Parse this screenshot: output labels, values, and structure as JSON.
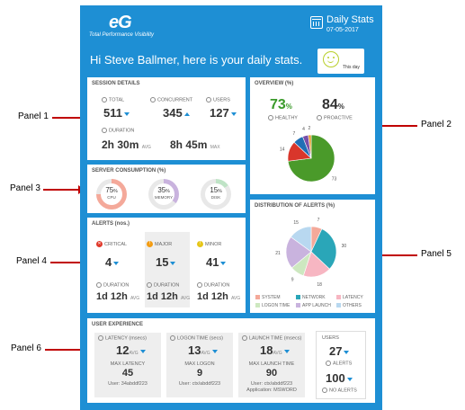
{
  "annotations": [
    "Panel 1",
    "Panel 2",
    "Panel 3",
    "Panel 4",
    "Panel 5",
    "Panel 6"
  ],
  "header": {
    "logo_text": "eG",
    "logo_tagline": "Total Performance Visibility",
    "title": "Daily Stats",
    "date": "07-05-2017",
    "greeting": "Hi Steve Ballmer, here is your daily stats.",
    "mood_label": "This day"
  },
  "session": {
    "title": "SESSION DETAILS",
    "total_label": "TOTAL",
    "total": "511",
    "concurrent_label": "CONCURRENT",
    "concurrent": "345",
    "users_label": "USERS",
    "users": "127",
    "duration_label": "DURATION",
    "avg_h": "2h",
    "avg_m": "30m",
    "avg_tag": "AVG",
    "max_h": "8h",
    "max_m": "45m",
    "max_tag": "MAX"
  },
  "overview": {
    "title": "OVERVIEW (%)",
    "healthy_value": "73",
    "healthy_unit": "%",
    "healthy_label": "HEALTHY",
    "proactive_value": "84",
    "proactive_unit": "%",
    "proactive_label": "PROACTIVE"
  },
  "server": {
    "title": "SERVER CONSUMPTION (%)",
    "items": [
      {
        "value": "75",
        "label": "CPU",
        "fraction": 0.75,
        "color": "#f4a99a"
      },
      {
        "value": "35",
        "label": "MEMORY",
        "fraction": 0.35,
        "color": "#c9b3de"
      },
      {
        "value": "15",
        "label": "DISK",
        "fraction": 0.15,
        "color": "#bfe3c6"
      }
    ],
    "unit": "%"
  },
  "alerts": {
    "title": "ALERTS (nos.)",
    "cols": [
      {
        "label": "CRITICAL",
        "value": "4",
        "dur_label": "DURATION",
        "d": "1d",
        "h": "12h",
        "tag": "AVG",
        "color": "#e0392b",
        "glyph": "✕"
      },
      {
        "label": "MAJOR",
        "value": "15",
        "dur_label": "DURATION",
        "d": "1d",
        "h": "12h",
        "tag": "AVG",
        "color": "#f39c12",
        "glyph": "!"
      },
      {
        "label": "MINOR",
        "value": "41",
        "dur_label": "DURATION",
        "d": "1d",
        "h": "12h",
        "tag": "AVG",
        "color": "#e6c619",
        "glyph": "!"
      }
    ]
  },
  "ux": {
    "title": "USER EXPERIENCE",
    "cols": [
      {
        "label": "LATENCY",
        "unit": "(msecs)",
        "value": "12",
        "tag": "AVG",
        "max_label": "MAX LATENCY",
        "max": "45",
        "user": "User: 34abddf223",
        "extra": ""
      },
      {
        "label": "LOGON TIME",
        "unit": "(secs)",
        "value": "13",
        "tag": "AVG",
        "max_label": "MAX LOGON",
        "max": "9",
        "user": "User: ctx/abddf223",
        "extra": ""
      },
      {
        "label": "LAUNCH TIME",
        "unit": "(msecs)",
        "value": "18",
        "tag": "AVG",
        "max_label": "MAX LAUNCH TIME",
        "max": "90",
        "user": "User: ctx/abddf223",
        "extra": "Application: MSWORD"
      }
    ],
    "users_label": "USERS",
    "users_value": "27",
    "alerts_label": "ALERTS",
    "no_alert_value": "100",
    "no_alerts_label": "NO ALERTS"
  },
  "distribution": {
    "title": "DISTRIBUTION OF ALERTS (%)",
    "legend": [
      {
        "label": "SYSTEM",
        "color": "#f4a99a"
      },
      {
        "label": "NETWORK",
        "color": "#2aa6b8"
      },
      {
        "label": "LATENCY",
        "color": "#f7b6c2"
      },
      {
        "label": "LOGON TIME",
        "color": "#cde8c0"
      },
      {
        "label": "APP LAUNCH",
        "color": "#c9b3de"
      },
      {
        "label": "OTHERS",
        "color": "#b8d8f0"
      }
    ]
  },
  "chart_data": [
    {
      "type": "pie",
      "categories": [
        "",
        "",
        "",
        "",
        ""
      ],
      "values": [
        73,
        14,
        7,
        4,
        2
      ],
      "colors": [
        "#4a9a2a",
        "#d9362b",
        "#1f6fb5",
        "#7a4fa8",
        "#e69a2b"
      ]
    },
    {
      "type": "pie",
      "categories": [
        "SYSTEM",
        "NETWORK",
        "LATENCY",
        "LOGON TIME",
        "APP LAUNCH",
        "OTHERS"
      ],
      "values": [
        7,
        30,
        18,
        9,
        21,
        15
      ]
    }
  ]
}
